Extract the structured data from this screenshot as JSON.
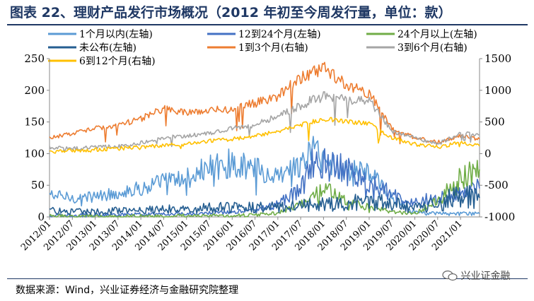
{
  "title": "图表 22、理财产品发行市场概况（2012 年初至今周发行量，单位：款）",
  "source": "数据来源：Wind，兴业证券经济与金融研究院整理",
  "watermark": "兴业证金融",
  "colors": {
    "title": "#1f3864",
    "s1": "#5b9bd5",
    "s2": "#4472c4",
    "s3": "#70ad47",
    "s4": "#255e91",
    "s5": "#ed7d31",
    "s6": "#a5a5a5",
    "s7": "#ffc000"
  },
  "chart_data": {
    "type": "line",
    "title": "",
    "xlabel": "",
    "ylabel": "",
    "y_left": {
      "lim": [
        0,
        250
      ],
      "ticks": [
        0,
        50,
        100,
        150,
        200,
        250
      ]
    },
    "y_right": {
      "lim": [
        -1000,
        1500
      ],
      "ticks": [
        -1000,
        -500,
        0,
        500,
        1000,
        1500
      ]
    },
    "x_ticks": [
      "2012/01",
      "2012/07",
      "2013/01",
      "2013/07",
      "2014/01",
      "2014/07",
      "2015/01",
      "2015/07",
      "2016/01",
      "2016/07",
      "2017/01",
      "2017/07",
      "2018/01",
      "2018/07",
      "2019/01",
      "2019/07",
      "2020/01",
      "2020/07",
      "2021/01"
    ],
    "x_range": [
      "2012/01",
      "2021/06"
    ],
    "grid": false,
    "legend_position": "top",
    "series": [
      {
        "name": "1个月以内(左轴)",
        "axis": "left",
        "color": "#5b9bd5",
        "x": [
          "2012/01",
          "2012/07",
          "2013/01",
          "2013/07",
          "2014/01",
          "2014/07",
          "2015/01",
          "2015/07",
          "2016/01",
          "2016/07",
          "2017/01",
          "2017/07",
          "2017/10",
          "2018/01",
          "2018/07",
          "2019/01",
          "2019/07",
          "2020/01",
          "2020/07",
          "2021/01",
          "2021/06"
        ],
        "values": [
          35,
          30,
          32,
          38,
          45,
          55,
          60,
          78,
          85,
          75,
          60,
          80,
          110,
          90,
          75,
          70,
          30,
          8,
          5,
          5,
          5
        ]
      },
      {
        "name": "12到24个月(左轴)",
        "axis": "left",
        "color": "#4472c4",
        "x": [
          "2012/01",
          "2012/07",
          "2013/01",
          "2013/07",
          "2014/01",
          "2014/07",
          "2015/01",
          "2015/07",
          "2016/01",
          "2016/07",
          "2017/01",
          "2017/07",
          "2017/10",
          "2018/01",
          "2018/07",
          "2019/01",
          "2019/07",
          "2020/01",
          "2020/07",
          "2021/01",
          "2021/06"
        ],
        "values": [
          2,
          2,
          3,
          3,
          4,
          5,
          5,
          6,
          8,
          10,
          20,
          45,
          80,
          90,
          70,
          55,
          35,
          25,
          30,
          40,
          45
        ]
      },
      {
        "name": "24个月以上(左轴)",
        "axis": "left",
        "color": "#70ad47",
        "x": [
          "2012/01",
          "2012/07",
          "2013/01",
          "2013/07",
          "2014/01",
          "2014/07",
          "2015/01",
          "2015/07",
          "2016/01",
          "2016/07",
          "2017/01",
          "2017/07",
          "2017/10",
          "2018/01",
          "2018/07",
          "2019/01",
          "2019/07",
          "2020/01",
          "2020/07",
          "2021/01",
          "2021/06"
        ],
        "values": [
          1,
          1,
          1,
          1,
          1,
          1,
          2,
          2,
          2,
          3,
          6,
          20,
          30,
          45,
          25,
          15,
          8,
          5,
          25,
          60,
          75
        ]
      },
      {
        "name": "未公布(左轴)",
        "axis": "left",
        "color": "#255e91",
        "x": [
          "2012/01",
          "2012/07",
          "2013/01",
          "2013/07",
          "2014/01",
          "2014/07",
          "2015/01",
          "2015/07",
          "2016/01",
          "2016/07",
          "2017/01",
          "2017/07",
          "2017/10",
          "2018/01",
          "2018/07",
          "2019/01",
          "2019/07",
          "2020/01",
          "2020/07",
          "2021/01",
          "2021/06"
        ],
        "values": [
          10,
          8,
          9,
          10,
          10,
          12,
          12,
          14,
          15,
          15,
          15,
          18,
          20,
          20,
          22,
          25,
          20,
          15,
          20,
          35,
          30
        ]
      },
      {
        "name": "1到3个月(右轴)",
        "axis": "right",
        "color": "#ed7d31",
        "x": [
          "2012/01",
          "2012/07",
          "2013/01",
          "2013/07",
          "2014/01",
          "2014/07",
          "2015/01",
          "2015/07",
          "2016/01",
          "2016/07",
          "2017/01",
          "2017/07",
          "2017/10",
          "2018/01",
          "2018/07",
          "2019/01",
          "2019/07",
          "2020/01",
          "2020/07",
          "2021/01",
          "2021/06"
        ],
        "values": [
          250,
          320,
          400,
          450,
          550,
          720,
          650,
          680,
          700,
          800,
          900,
          1200,
          1300,
          1350,
          1100,
          950,
          400,
          250,
          180,
          280,
          230
        ]
      },
      {
        "name": "3到6个月(右轴)",
        "axis": "right",
        "color": "#a5a5a5",
        "x": [
          "2012/01",
          "2012/07",
          "2013/01",
          "2013/07",
          "2014/01",
          "2014/07",
          "2015/01",
          "2015/07",
          "2016/01",
          "2016/07",
          "2017/01",
          "2017/07",
          "2017/10",
          "2018/01",
          "2018/07",
          "2019/01",
          "2019/07",
          "2020/01",
          "2020/07",
          "2021/01",
          "2021/06"
        ],
        "values": [
          100,
          80,
          100,
          120,
          170,
          250,
          280,
          320,
          400,
          450,
          600,
          750,
          850,
          900,
          850,
          850,
          350,
          250,
          150,
          330,
          300
        ]
      },
      {
        "name": "6到12个月(右轴)",
        "axis": "right",
        "color": "#ffc000",
        "x": [
          "2012/01",
          "2012/07",
          "2013/01",
          "2013/07",
          "2014/01",
          "2014/07",
          "2015/01",
          "2015/07",
          "2016/01",
          "2016/07",
          "2017/01",
          "2017/07",
          "2017/10",
          "2018/01",
          "2018/07",
          "2019/01",
          "2019/07",
          "2020/01",
          "2020/07",
          "2021/01",
          "2021/06"
        ],
        "values": [
          20,
          50,
          60,
          80,
          100,
          130,
          150,
          200,
          230,
          280,
          350,
          450,
          500,
          550,
          500,
          480,
          250,
          150,
          100,
          180,
          120
        ]
      }
    ]
  }
}
